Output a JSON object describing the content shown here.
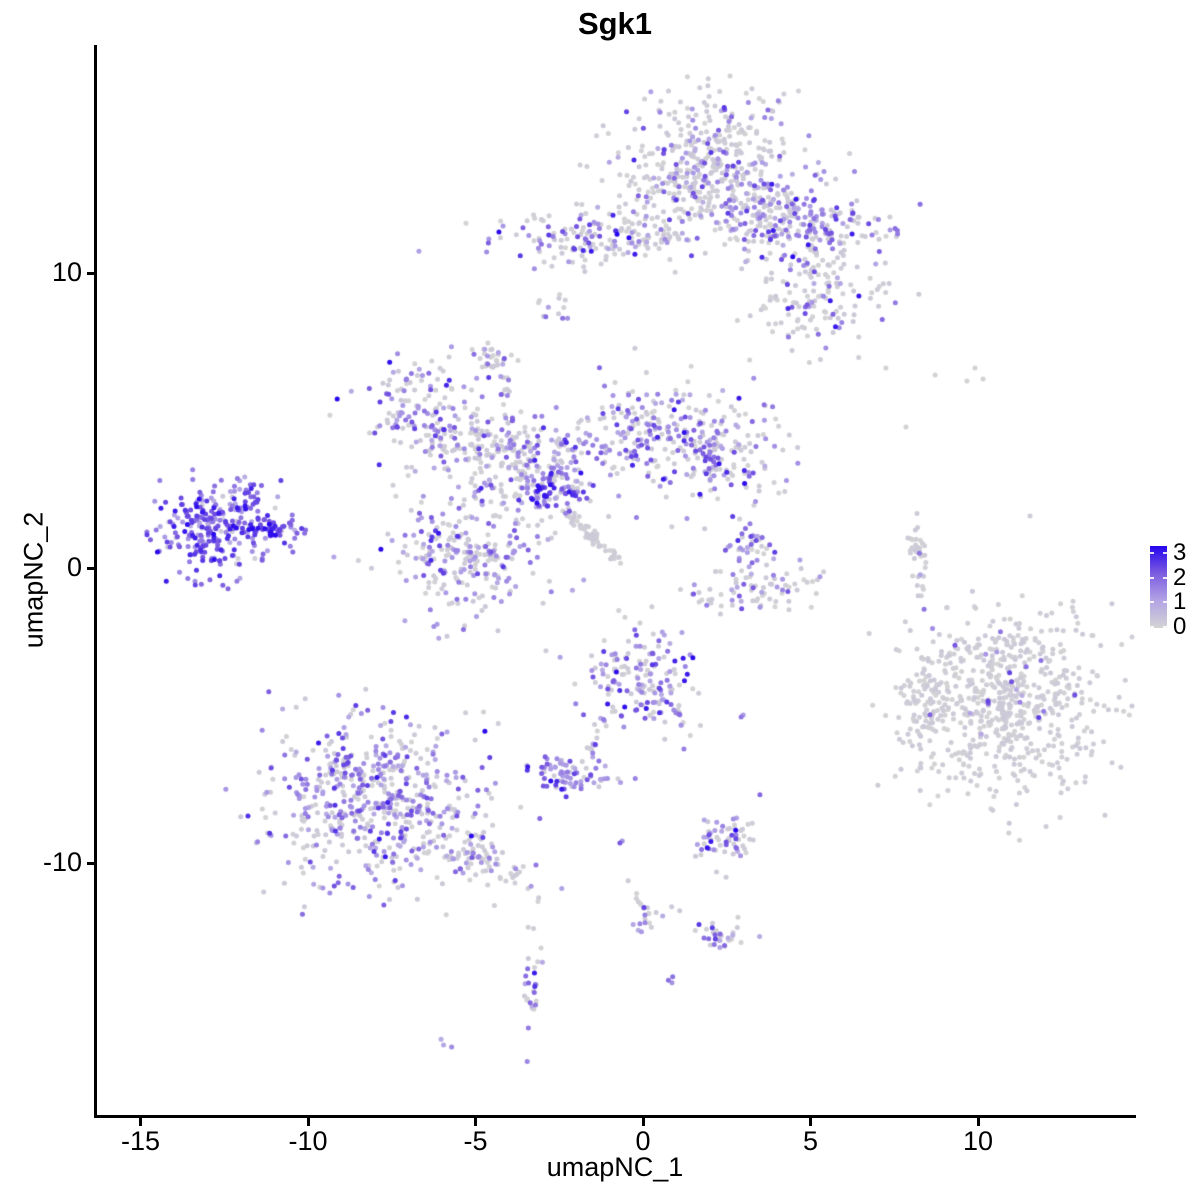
{
  "figure": {
    "title": "Sgk1",
    "x_axis": {
      "label": "umapNC_1",
      "ticks": [
        "-15",
        "-10",
        "-5",
        "0",
        "5",
        "10"
      ],
      "tick_values": [
        -15,
        -10,
        -5,
        0,
        5,
        10
      ]
    },
    "y_axis": {
      "label": "umapNC_2",
      "ticks": [
        "10",
        "0",
        "-10"
      ],
      "tick_values": [
        10,
        0,
        -10
      ]
    },
    "legend": {
      "tick_labels": [
        "3",
        "2",
        "1",
        "0"
      ],
      "tick_values": [
        3,
        2,
        1,
        0
      ],
      "gradient_top_to_bottom": [
        "#2606EE",
        "#7B5BE0",
        "#B2A3E5",
        "#D4D4D4"
      ]
    }
  },
  "chart_data": {
    "type": "scatter",
    "title": "Sgk1",
    "xlabel": "umapNC_1",
    "ylabel": "umapNC_2",
    "xlim": [
      -16.4,
      14.7
    ],
    "ylim": [
      -17.8,
      17.8
    ],
    "grid": false,
    "legend_position": "right",
    "color_scale": {
      "min": 0,
      "max": 3,
      "stops": [
        "#D4D4D4",
        "#B2A3E5",
        "#7B5BE0",
        "#2606EE"
      ]
    },
    "marker_radius_px": 2.5,
    "description": "UMAP feature plot; per-cell Sgk1 expression 0-3 mapped grey to blue",
    "expr_bins": [
      [
        0,
        0.25
      ],
      [
        0.75,
        1.5
      ],
      [
        1.5,
        2.4
      ],
      [
        2.4,
        3.0
      ]
    ],
    "clusters": [
      {
        "name": "left-core",
        "kind": "gauss",
        "x": -12.87,
        "y": 1.36,
        "sx": 0.84,
        "sy": 0.78,
        "rot": 0,
        "n": 240,
        "expr_weights": [
          0.04,
          0.24,
          0.52,
          0.2
        ]
      },
      {
        "name": "left-tip",
        "kind": "gauss",
        "x": -11.1,
        "y": 1.33,
        "sx": 0.45,
        "sy": 0.25,
        "rot": 0,
        "n": 55,
        "expr_weights": [
          0.02,
          0.2,
          0.55,
          0.23
        ]
      },
      {
        "name": "left-arm-up",
        "kind": "gauss",
        "x": -11.55,
        "y": 2.45,
        "sx": 0.33,
        "sy": 0.3,
        "rot": 0,
        "n": 20,
        "expr_weights": [
          0.05,
          0.25,
          0.5,
          0.2
        ]
      },
      {
        "name": "top-main-upper",
        "kind": "gauss",
        "x": 2.0,
        "y": 14.2,
        "sx": 1.25,
        "sy": 1.0,
        "rot": 0,
        "n": 230,
        "expr_weights": [
          0.74,
          0.18,
          0.07,
          0.01
        ]
      },
      {
        "name": "top-main-lower",
        "kind": "gauss",
        "x": 1.6,
        "y": 12.9,
        "sx": 1.5,
        "sy": 0.85,
        "rot": 0,
        "n": 200,
        "expr_weights": [
          0.72,
          0.2,
          0.07,
          0.01
        ]
      },
      {
        "name": "top-neck",
        "kind": "gauss",
        "x": 3.6,
        "y": 12.2,
        "sx": 0.8,
        "sy": 0.7,
        "rot": 0,
        "n": 90,
        "expr_weights": [
          0.65,
          0.22,
          0.11,
          0.02
        ]
      },
      {
        "name": "top-right-ext",
        "kind": "gauss",
        "x": 4.93,
        "y": 11.53,
        "sx": 1.13,
        "sy": 0.7,
        "rot": 0,
        "n": 190,
        "expr_weights": [
          0.45,
          0.28,
          0.22,
          0.05
        ]
      },
      {
        "name": "top-left-arm",
        "kind": "gauss",
        "x": -1.73,
        "y": 11.22,
        "sx": 1.4,
        "sy": 0.5,
        "rot": 0,
        "n": 150,
        "expr_weights": [
          0.62,
          0.24,
          0.12,
          0.02
        ]
      },
      {
        "name": "top-connector",
        "kind": "line",
        "x1": -0.2,
        "y1": 10.95,
        "x2": 1.2,
        "y2": 11.3,
        "jitter": 0.15,
        "n": 22,
        "expr_weights": [
          0.9,
          0.1,
          0,
          0
        ]
      },
      {
        "name": "top-lower-right",
        "kind": "gauss",
        "x": 5.22,
        "y": 9.08,
        "sx": 1.1,
        "sy": 0.75,
        "rot": 0,
        "n": 135,
        "expr_weights": [
          0.75,
          0.14,
          0.09,
          0.02
        ]
      },
      {
        "name": "top-small-bit",
        "kind": "gauss",
        "x": -2.75,
        "y": 8.68,
        "sx": 0.25,
        "sy": 0.4,
        "rot": 0,
        "n": 12,
        "expr_weights": [
          0.6,
          0.2,
          0.2,
          0
        ]
      },
      {
        "name": "mid-top-blob",
        "kind": "gauss",
        "x": -4.48,
        "y": 7.22,
        "sx": 0.3,
        "sy": 0.3,
        "rot": 0,
        "n": 26,
        "expr_weights": [
          0.88,
          0.08,
          0.04,
          0
        ]
      },
      {
        "name": "mid-top-chain",
        "kind": "line",
        "x1": -4.15,
        "y1": 6.6,
        "x2": -4.02,
        "y2": 4.8,
        "jitter": 0.08,
        "n": 11,
        "expr_weights": [
          0.85,
          0.15,
          0,
          0
        ]
      },
      {
        "name": "mid-nw-arm",
        "kind": "gauss",
        "x": -6.5,
        "y": 5.29,
        "sx": 1.1,
        "sy": 0.85,
        "rot": -20,
        "n": 150,
        "expr_weights": [
          0.5,
          0.26,
          0.2,
          0.04
        ]
      },
      {
        "name": "mid-band",
        "kind": "gauss",
        "x": -4.87,
        "y": 4.07,
        "sx": 1.25,
        "sy": 0.5,
        "rot": 0,
        "n": 115,
        "expr_weights": [
          0.78,
          0.16,
          0.06,
          0
        ]
      },
      {
        "name": "mid-center",
        "kind": "gauss",
        "x": -2.93,
        "y": 3.32,
        "sx": 0.95,
        "sy": 0.85,
        "rot": 0,
        "n": 195,
        "expr_weights": [
          0.5,
          0.28,
          0.17,
          0.05
        ]
      },
      {
        "name": "mid-dense-blue",
        "kind": "gauss",
        "x": -2.72,
        "y": 2.51,
        "sx": 0.45,
        "sy": 0.28,
        "rot": 0,
        "n": 40,
        "expr_weights": [
          0.05,
          0.15,
          0.42,
          0.38
        ]
      },
      {
        "name": "mid-ne-arm",
        "kind": "gauss",
        "x": -0.15,
        "y": 4.61,
        "sx": 0.85,
        "sy": 0.9,
        "rot": 0,
        "n": 120,
        "expr_weights": [
          0.56,
          0.25,
          0.16,
          0.03
        ]
      },
      {
        "name": "mid-ne-mass",
        "kind": "gauss",
        "x": 2.12,
        "y": 4.14,
        "sx": 1.0,
        "sy": 1.0,
        "rot": 0,
        "n": 210,
        "expr_weights": [
          0.52,
          0.26,
          0.18,
          0.04
        ]
      },
      {
        "name": "mid-se-streak",
        "kind": "line",
        "x1": -2.39,
        "y1": 2.0,
        "x2": -0.8,
        "y2": 0.25,
        "jitter": 0.1,
        "n": 55,
        "expr_weights": [
          0.97,
          0.03,
          0,
          0
        ]
      },
      {
        "name": "mid-sw-blob",
        "kind": "gauss",
        "x": -5.31,
        "y": 0.54,
        "sx": 1.2,
        "sy": 1.05,
        "rot": 0,
        "n": 255,
        "expr_weights": [
          0.52,
          0.32,
          0.14,
          0.02
        ]
      },
      {
        "name": "midright-upper",
        "kind": "gauss",
        "x": 3.25,
        "y": 0.61,
        "sx": 0.5,
        "sy": 0.5,
        "rot": 0,
        "n": 45,
        "expr_weights": [
          0.42,
          0.28,
          0.25,
          0.05
        ]
      },
      {
        "name": "midright-arc",
        "kind": "gauss",
        "x": 3.4,
        "y": -0.81,
        "sx": 1.1,
        "sy": 0.35,
        "rot": 8,
        "n": 70,
        "expr_weights": [
          0.68,
          0.18,
          0.12,
          0.02
        ]
      },
      {
        "name": "right-thin-arc",
        "kind": "gauss",
        "x": 8.21,
        "y": 0.41,
        "sx": 0.17,
        "sy": 0.8,
        "rot": 8,
        "n": 34,
        "expr_weights": [
          0.94,
          0.03,
          0.03,
          0
        ]
      },
      {
        "name": "right-big",
        "kind": "gauss",
        "x": 10.72,
        "y": -4.47,
        "sx": 1.5,
        "sy": 1.6,
        "rot": 0,
        "n": 660,
        "expr_weights": [
          0.977,
          0.013,
          0.01,
          0
        ]
      },
      {
        "name": "right-big-left-edge",
        "kind": "gauss",
        "x": 8.3,
        "y": -4.88,
        "sx": 0.35,
        "sy": 0.85,
        "rot": 0,
        "n": 55,
        "expr_weights": [
          0.96,
          0.02,
          0.02,
          0
        ]
      },
      {
        "name": "centerbottom",
        "kind": "gauss",
        "x": -0.09,
        "y": -3.73,
        "sx": 0.85,
        "sy": 0.85,
        "rot": 0,
        "n": 165,
        "expr_weights": [
          0.42,
          0.3,
          0.2,
          0.08
        ]
      },
      {
        "name": "centerbottom-chain",
        "kind": "line",
        "x1": -1.1,
        "y1": -4.95,
        "x2": -1.64,
        "y2": -6.4,
        "jitter": 0.07,
        "n": 13,
        "expr_weights": [
          0.5,
          0.3,
          0.2,
          0
        ]
      },
      {
        "name": "centerbottom-rightarm",
        "kind": "line",
        "x1": 0.81,
        "y1": -4.64,
        "x2": 1.46,
        "y2": -5.7,
        "jitter": 0.07,
        "n": 11,
        "expr_weights": [
          0.55,
          0.25,
          0.2,
          0
        ]
      },
      {
        "name": "small-dense-purple",
        "kind": "gauss",
        "x": -2.21,
        "y": -6.98,
        "sx": 0.5,
        "sy": 0.3,
        "rot": -15,
        "n": 65,
        "expr_weights": [
          0.15,
          0.45,
          0.35,
          0.05
        ]
      },
      {
        "name": "small-dense-trail",
        "kind": "line",
        "x1": -1.43,
        "y1": -7.1,
        "x2": -0.63,
        "y2": -7.3,
        "jitter": 0.08,
        "n": 6,
        "expr_weights": [
          0.5,
          0.5,
          0,
          0
        ]
      },
      {
        "name": "bottomleft-main",
        "kind": "gauss",
        "x": -8.0,
        "y": -7.76,
        "sx": 1.5,
        "sy": 1.5,
        "rot": 0,
        "n": 560,
        "expr_weights": [
          0.44,
          0.34,
          0.19,
          0.03
        ]
      },
      {
        "name": "bottomleft-tail",
        "kind": "gauss",
        "x": -4.78,
        "y": -9.9,
        "sx": 0.9,
        "sy": 0.4,
        "rot": -28,
        "n": 90,
        "expr_weights": [
          0.72,
          0.2,
          0.08,
          0
        ]
      },
      {
        "name": "bottommid-c1",
        "kind": "gauss",
        "x": 2.57,
        "y": -9.19,
        "sx": 0.45,
        "sy": 0.45,
        "rot": 0,
        "n": 60,
        "expr_weights": [
          0.55,
          0.2,
          0.2,
          0.05
        ]
      },
      {
        "name": "bottommid-diag-chain",
        "kind": "line",
        "x1": -0.45,
        "y1": -10.47,
        "x2": 0.24,
        "y2": -12.05,
        "jitter": 0.08,
        "n": 13,
        "expr_weights": [
          0.6,
          0.25,
          0.15,
          0
        ]
      },
      {
        "name": "bottommid-smallc",
        "kind": "gauss",
        "x": -0.15,
        "y": -12.14,
        "sx": 0.15,
        "sy": 0.12,
        "rot": 0,
        "n": 6,
        "expr_weights": [
          0.2,
          0.4,
          0.4,
          0
        ]
      },
      {
        "name": "bottommid-dots",
        "kind": "gauss",
        "x": 0.69,
        "y": -11.76,
        "sx": 0.25,
        "sy": 0.15,
        "rot": 0,
        "n": 5,
        "expr_weights": [
          0.6,
          0.4,
          0,
          0
        ]
      },
      {
        "name": "bottommid-c2",
        "kind": "gauss",
        "x": 2.45,
        "y": -12.51,
        "sx": 0.38,
        "sy": 0.24,
        "rot": 0,
        "n": 32,
        "expr_weights": [
          0.55,
          0.2,
          0.2,
          0.05
        ]
      },
      {
        "name": "bottommid-pair",
        "kind": "gauss",
        "x": 0.75,
        "y": -13.97,
        "sx": 0.12,
        "sy": 0.1,
        "rot": 0,
        "n": 3,
        "expr_weights": [
          0,
          0.3,
          0.7,
          0
        ]
      },
      {
        "name": "bottom-vert-chain",
        "kind": "gauss",
        "x": -3.28,
        "y": -14.47,
        "sx": 0.16,
        "sy": 0.8,
        "rot": 0,
        "n": 28,
        "expr_weights": [
          0.45,
          0.25,
          0.25,
          0.05
        ]
      },
      {
        "name": "bottom-left-pair",
        "kind": "gauss",
        "x": -5.88,
        "y": -16.1,
        "sx": 0.15,
        "sy": 0.1,
        "rot": 0,
        "n": 3,
        "expr_weights": [
          0.1,
          0.9,
          0,
          0
        ]
      }
    ],
    "singles": [
      {
        "x": 7.25,
        "y": 6.78,
        "e": 0.05
      },
      {
        "x": 8.72,
        "y": 6.54,
        "e": 0.05
      },
      {
        "x": 9.91,
        "y": 6.78,
        "e": 0.05
      },
      {
        "x": 10.15,
        "y": 6.41,
        "e": 0.05
      },
      {
        "x": 9.67,
        "y": 6.34,
        "e": 0.05
      },
      {
        "x": 7.85,
        "y": 4.78,
        "e": 0.05
      },
      {
        "x": -0.69,
        "y": -9.32,
        "e": 2.0
      },
      {
        "x": -0.62,
        "y": -9.25,
        "e": 1.2
      },
      {
        "x": 3.49,
        "y": -7.69,
        "e": 1.8
      },
      {
        "x": 2.93,
        "y": -5.05,
        "e": 1.6
      },
      {
        "x": 2.99,
        "y": -4.98,
        "e": 1.1
      },
      {
        "x": 8.25,
        "y": 0.5,
        "e": 1.6
      }
    ]
  }
}
